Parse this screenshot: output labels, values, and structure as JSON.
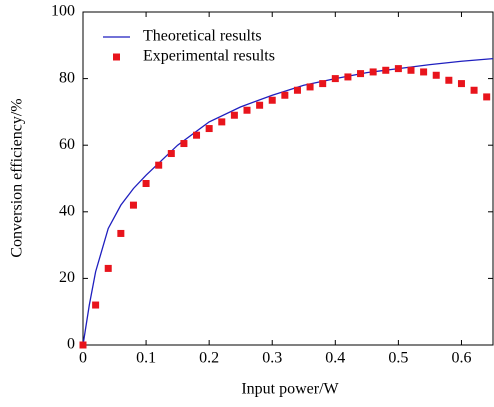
{
  "chart_data": {
    "type": "line",
    "xlabel": "Input power/W",
    "ylabel": "Conversion efficiency/%",
    "xlim": [
      0,
      0.65
    ],
    "ylim": [
      0,
      100
    ],
    "xticks": [
      0,
      0.1,
      0.2,
      0.3,
      0.4,
      0.5,
      0.6
    ],
    "yticks": [
      0,
      20,
      40,
      60,
      80,
      100
    ],
    "legend": "upper left",
    "series": [
      {
        "name": "Theoretical results",
        "color": "#1f1fbf",
        "mode": "line",
        "x": [
          0,
          0.01,
          0.02,
          0.04,
          0.06,
          0.08,
          0.1,
          0.15,
          0.2,
          0.25,
          0.3,
          0.35,
          0.4,
          0.45,
          0.5,
          0.55,
          0.6,
          0.65
        ],
        "values": [
          0,
          12,
          22,
          35,
          42,
          47,
          51,
          60,
          67,
          71.5,
          75,
          78,
          80,
          81.8,
          83,
          84.2,
          85.2,
          86
        ]
      },
      {
        "name": "Experimental results",
        "color": "#e8141c",
        "mode": "markers",
        "x": [
          0,
          0.02,
          0.04,
          0.06,
          0.08,
          0.1,
          0.12,
          0.14,
          0.16,
          0.18,
          0.2,
          0.22,
          0.24,
          0.26,
          0.28,
          0.3,
          0.32,
          0.34,
          0.36,
          0.38,
          0.4,
          0.42,
          0.44,
          0.46,
          0.48,
          0.5,
          0.52,
          0.54,
          0.56,
          0.58,
          0.6,
          0.62,
          0.64
        ],
        "values": [
          0,
          12,
          23,
          33.5,
          42,
          48.5,
          54,
          57.5,
          60.5,
          63,
          65,
          67,
          69,
          70.5,
          72,
          73.5,
          75,
          76.5,
          77.5,
          78.5,
          80,
          80.5,
          81.5,
          82,
          82.5,
          83,
          82.5,
          82,
          81,
          79.5,
          78.5,
          76.5,
          74.5
        ]
      }
    ]
  }
}
